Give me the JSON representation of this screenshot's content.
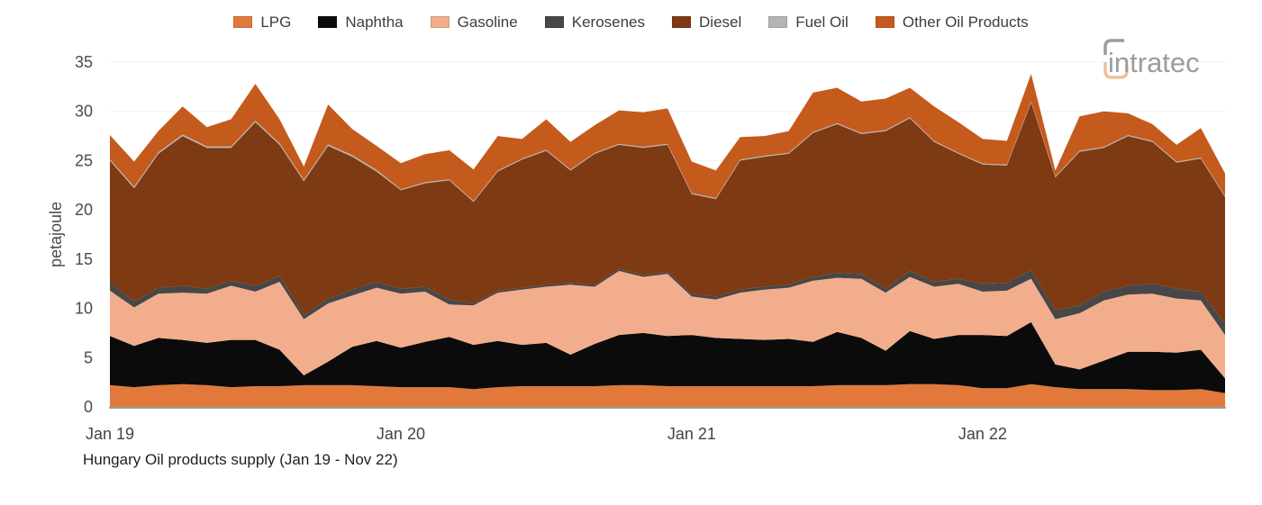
{
  "logo": {
    "text": "intratec",
    "gray": "#9C9C9C",
    "peach": "#EFC09B"
  },
  "axis": {
    "y_tick_color": "#4b4b4b",
    "x_tick_color": "#444444",
    "baseline_color": "#9b9b9b",
    "gridline_color": "#f2f2f2"
  },
  "chart_data": {
    "type": "area",
    "stacked": true,
    "title": "Hungary Oil products supply (Jan 19 - Nov 22)",
    "xlabel": "",
    "ylabel": "petajoule",
    "ylim": [
      0,
      35
    ],
    "yticks": [
      0,
      5,
      10,
      15,
      20,
      25,
      30,
      35
    ],
    "grid": "faint-horizontal",
    "legend_position": "top-center",
    "x": [
      "Jan 19",
      "Feb 19",
      "Mar 19",
      "Apr 19",
      "May 19",
      "Jun 19",
      "Jul 19",
      "Aug 19",
      "Sep 19",
      "Oct 19",
      "Nov 19",
      "Dec 19",
      "Jan 20",
      "Feb 20",
      "Mar 20",
      "Apr 20",
      "May 20",
      "Jun 20",
      "Jul 20",
      "Aug 20",
      "Sep 20",
      "Oct 20",
      "Nov 20",
      "Dec 20",
      "Jan 21",
      "Feb 21",
      "Mar 21",
      "Apr 21",
      "May 21",
      "Jun 21",
      "Jul 21",
      "Aug 21",
      "Sep 21",
      "Oct 21",
      "Nov 21",
      "Dec 21",
      "Jan 22",
      "Feb 22",
      "Mar 22",
      "Apr 22",
      "May 22",
      "Jun 22",
      "Jul 22",
      "Aug 22",
      "Sep 22",
      "Oct 22",
      "Nov 22"
    ],
    "xticks": [
      {
        "label": "Jan 19",
        "index": 0
      },
      {
        "label": "Jan 20",
        "index": 12
      },
      {
        "label": "Jan 21",
        "index": 24
      },
      {
        "label": "Jan 22",
        "index": 36
      }
    ],
    "series": [
      {
        "name": "LPG",
        "color": "#E2793A",
        "values": [
          2.2,
          2.0,
          2.2,
          2.3,
          2.2,
          2.0,
          2.1,
          2.1,
          2.2,
          2.2,
          2.2,
          2.1,
          2.0,
          2.0,
          2.0,
          1.8,
          2.0,
          2.1,
          2.1,
          2.1,
          2.1,
          2.2,
          2.2,
          2.1,
          2.1,
          2.1,
          2.1,
          2.1,
          2.1,
          2.1,
          2.2,
          2.2,
          2.2,
          2.3,
          2.3,
          2.2,
          1.9,
          1.9,
          2.3,
          2.0,
          1.8,
          1.8,
          1.8,
          1.7,
          1.7,
          1.8,
          1.4
        ]
      },
      {
        "name": "Naphtha",
        "color": "#0b0b0b",
        "values": [
          5.0,
          4.2,
          4.8,
          4.5,
          4.3,
          4.8,
          4.7,
          3.7,
          1.0,
          2.4,
          3.9,
          4.6,
          4.0,
          4.6,
          5.1,
          4.5,
          4.7,
          4.2,
          4.4,
          3.2,
          4.3,
          5.1,
          5.3,
          5.1,
          5.2,
          4.9,
          4.8,
          4.7,
          4.8,
          4.5,
          5.4,
          4.8,
          3.5,
          5.4,
          4.6,
          5.1,
          5.4,
          5.3,
          6.3,
          2.3,
          2.0,
          2.9,
          3.8,
          3.9,
          3.8,
          4.0,
          1.5
        ]
      },
      {
        "name": "Gasoline",
        "color": "#F2AE8C",
        "values": [
          4.6,
          3.9,
          4.5,
          4.8,
          5.0,
          5.5,
          4.9,
          6.9,
          5.7,
          5.9,
          5.2,
          5.4,
          5.5,
          5.1,
          3.3,
          4.0,
          4.9,
          5.6,
          5.7,
          7.1,
          5.8,
          6.5,
          5.7,
          6.3,
          3.9,
          3.9,
          4.7,
          5.1,
          5.2,
          6.2,
          5.5,
          6.0,
          5.9,
          5.5,
          5.3,
          5.2,
          4.4,
          4.6,
          4.4,
          4.6,
          5.7,
          6.1,
          5.8,
          5.9,
          5.5,
          5.0,
          4.4
        ]
      },
      {
        "name": "Kerosenes",
        "color": "#474747",
        "values": [
          0.8,
          0.6,
          0.6,
          0.7,
          0.5,
          0.5,
          0.6,
          0.6,
          0.4,
          0.5,
          0.6,
          0.6,
          0.5,
          0.5,
          0.5,
          0.2,
          0.2,
          0.2,
          0.2,
          0.2,
          0.2,
          0.2,
          0.2,
          0.2,
          0.3,
          0.3,
          0.3,
          0.3,
          0.3,
          0.4,
          0.5,
          0.5,
          0.4,
          0.6,
          0.5,
          0.5,
          0.8,
          0.8,
          0.9,
          0.9,
          0.8,
          0.9,
          0.9,
          1.0,
          1.0,
          0.9,
          1.1
        ]
      },
      {
        "name": "Diesel",
        "color": "#7E3A12",
        "values": [
          12.4,
          11.5,
          13.6,
          15.2,
          14.3,
          13.5,
          16.6,
          13.3,
          13.6,
          15.5,
          13.5,
          11.2,
          10.0,
          10.5,
          12.1,
          10.3,
          12.1,
          13.0,
          13.6,
          11.4,
          13.3,
          12.6,
          12.9,
          12.9,
          10.1,
          9.9,
          13.1,
          13.2,
          13.3,
          14.6,
          15.1,
          14.2,
          16.0,
          15.5,
          14.2,
          12.7,
          12.1,
          11.9,
          17.0,
          13.5,
          15.6,
          14.6,
          15.2,
          14.4,
          12.8,
          13.5,
          12.9
        ]
      },
      {
        "name": "Fuel Oil",
        "color": "#B5B5B5",
        "values": [
          0.15,
          0.15,
          0.15,
          0.15,
          0.15,
          0.15,
          0.15,
          0.15,
          0.15,
          0.15,
          0.15,
          0.15,
          0.1,
          0.1,
          0.1,
          0.1,
          0.1,
          0.1,
          0.1,
          0.1,
          0.1,
          0.1,
          0.1,
          0.1,
          0.1,
          0.1,
          0.1,
          0.1,
          0.1,
          0.1,
          0.1,
          0.1,
          0.1,
          0.1,
          0.1,
          0.1,
          0.1,
          0.1,
          0.1,
          0.1,
          0.1,
          0.1,
          0.1,
          0.1,
          0.1,
          0.1,
          0.1
        ]
      },
      {
        "name": "Other Oil Products",
        "color": "#C55A1D",
        "values": [
          2.45,
          2.55,
          2.15,
          2.85,
          1.95,
          2.75,
          3.75,
          2.45,
          1.35,
          4.05,
          2.65,
          2.45,
          2.65,
          2.85,
          2.95,
          3.2,
          3.5,
          2.0,
          3.1,
          2.8,
          2.8,
          3.4,
          3.5,
          3.6,
          3.2,
          2.8,
          2.3,
          2.0,
          2.2,
          4.0,
          3.6,
          3.2,
          3.2,
          3.0,
          3.5,
          3.1,
          2.5,
          2.4,
          2.8,
          0.6,
          3.5,
          3.6,
          2.2,
          1.7,
          1.7,
          3.0,
          2.3
        ]
      }
    ]
  }
}
